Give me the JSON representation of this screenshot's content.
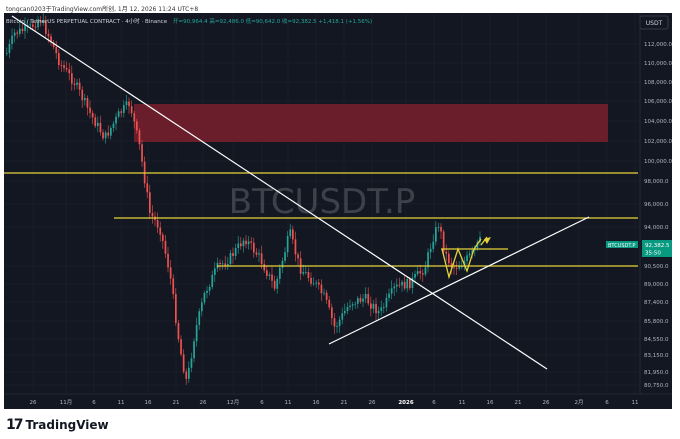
{
  "header": {
    "caption": "tongcan0203于TradingView.com所创, 1月 12, 2026 11:24 UTC+8"
  },
  "legend": {
    "symbol_title": "Bitcoin / TetherUS PERPETUAL CONTRACT · 4小时 · Binance",
    "ohlc": "开=90,964.4 高=92,486.0 低=90,642.0 收=92,382.5 +1,418.1 (+1.56%)"
  },
  "currency_button": "USDT",
  "watermark": "BTCUSDT.P",
  "price_badge": {
    "symbol": "BTCUSDT.P",
    "price": "92,382.5",
    "countdown": "35:50"
  },
  "price_axis": [
    "112,000.0",
    "110,000.0",
    "108,000.0",
    "106,000.0",
    "104,000.0",
    "102,000.0",
    "100,000.0",
    "98,000.0",
    "96,000.0",
    "94,000.0",
    "90,500.0",
    "89,000.0",
    "87,400.0",
    "85,800.0",
    "84,550.0",
    "83,150.0",
    "81,950.0",
    "80,750.0"
  ],
  "time_axis": [
    "26",
    "11月",
    "6",
    "11",
    "16",
    "21",
    "26",
    "12月",
    "6",
    "11",
    "16",
    "21",
    "26",
    "2026",
    "6",
    "11",
    "16",
    "21",
    "26",
    "2月",
    "6",
    "11"
  ],
  "footer": {
    "brand": "TradingView"
  },
  "colors": {
    "background": "#131722",
    "bull_candle": "#26a69a",
    "bear_candle": "#ef5350",
    "level_line": "#e6d33a",
    "trend_line": "#ffffff",
    "zone_fill": "#7a1f2b",
    "badge_bg": "#089981"
  }
}
